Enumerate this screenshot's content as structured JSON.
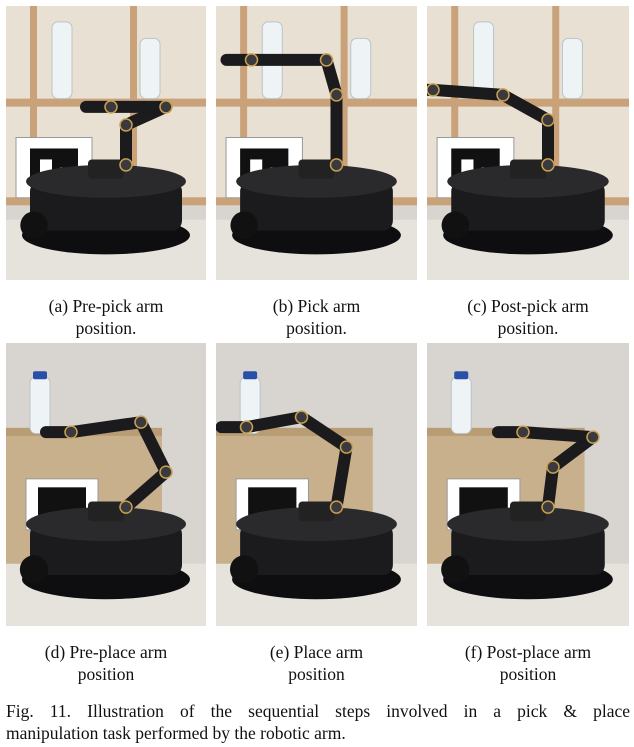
{
  "figure": {
    "subfigures": [
      {
        "label_line1": "(a) Pre-pick arm",
        "label_line2": "position.",
        "scene": "shelf",
        "step": "pre-pick"
      },
      {
        "label_line1": "(b) Pick arm",
        "label_line2": "position.",
        "scene": "shelf",
        "step": "pick"
      },
      {
        "label_line1": "(c) Post-pick arm",
        "label_line2": "position.",
        "scene": "shelf",
        "step": "post-pick"
      },
      {
        "label_line1": "(d) Pre-place arm",
        "label_line2": "position",
        "scene": "box",
        "step": "pre-place"
      },
      {
        "label_line1": "(e) Place arm",
        "label_line2": "position",
        "scene": "box",
        "step": "place"
      },
      {
        "label_line1": "(f) Post-place arm",
        "label_line2": "position",
        "scene": "box",
        "step": "post-place"
      }
    ],
    "caption_line1": "Fig. 11.  Illustration of the sequential steps involved in a pick & place",
    "caption_line2": "manipulation task performed by the robotic arm."
  },
  "colors": {
    "wall": "#d8d4cf",
    "shelf_wood": "#c9a27a",
    "box_cardboard": "#c8b08c",
    "floor": "#e6e2dc",
    "robot": "#1b1b1d",
    "bottle_cap": "#2a4fa8"
  }
}
